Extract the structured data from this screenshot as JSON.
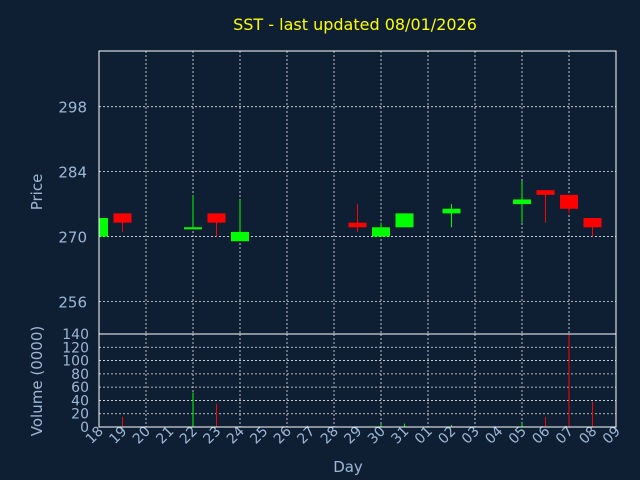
{
  "chart_data": {
    "type": "candlestick",
    "title": "SST - last updated 08/01/2026",
    "xlabel": "Day",
    "price": {
      "ylabel": "Price",
      "ylim": [
        249,
        310
      ],
      "yticks": [
        256,
        270,
        284,
        298
      ],
      "bull_color": "#00ff00",
      "bear_color": "#ff0000"
    },
    "volume": {
      "ylabel": "Volume (0000)",
      "ylim": [
        0,
        140
      ],
      "yticks": [
        0,
        20,
        40,
        60,
        80,
        100,
        120,
        140
      ]
    },
    "x_ticks": [
      "18",
      "19",
      "20",
      "21",
      "22",
      "23",
      "24",
      "25",
      "26",
      "27",
      "28",
      "29",
      "30",
      "31",
      "01",
      "02",
      "03",
      "04",
      "05",
      "06",
      "07",
      "08",
      "09"
    ],
    "candles": [
      {
        "day": "18",
        "open": 270,
        "high": 274,
        "low": 270,
        "close": 274,
        "volume": 0
      },
      {
        "day": "19",
        "open": 275,
        "high": 275,
        "low": 271,
        "close": 273,
        "volume": 15
      },
      {
        "day": "22",
        "open": 272,
        "high": 279,
        "low": 272,
        "close": 272,
        "volume": 52
      },
      {
        "day": "23",
        "open": 275,
        "high": 275,
        "low": 270,
        "close": 273,
        "volume": 35
      },
      {
        "day": "24",
        "open": 269,
        "high": 278,
        "low": 269,
        "close": 271,
        "volume": 0
      },
      {
        "day": "29",
        "open": 273,
        "high": 277,
        "low": 271,
        "close": 272,
        "volume": 0
      },
      {
        "day": "30",
        "open": 270,
        "high": 273,
        "low": 270,
        "close": 272,
        "volume": 5
      },
      {
        "day": "31",
        "open": 272,
        "high": 275,
        "low": 272,
        "close": 275,
        "volume": 5
      },
      {
        "day": "02",
        "open": 275,
        "high": 277,
        "low": 272,
        "close": 276,
        "volume": 3
      },
      {
        "day": "05",
        "open": 277,
        "high": 282,
        "low": 273,
        "close": 278,
        "volume": 6
      },
      {
        "day": "06",
        "open": 280,
        "high": 280,
        "low": 273,
        "close": 279,
        "volume": 15
      },
      {
        "day": "07",
        "open": 279,
        "high": 279,
        "low": 275,
        "close": 276,
        "volume": 140
      },
      {
        "day": "08",
        "open": 274,
        "high": 274,
        "low": 270,
        "close": 272,
        "volume": 38
      }
    ]
  }
}
